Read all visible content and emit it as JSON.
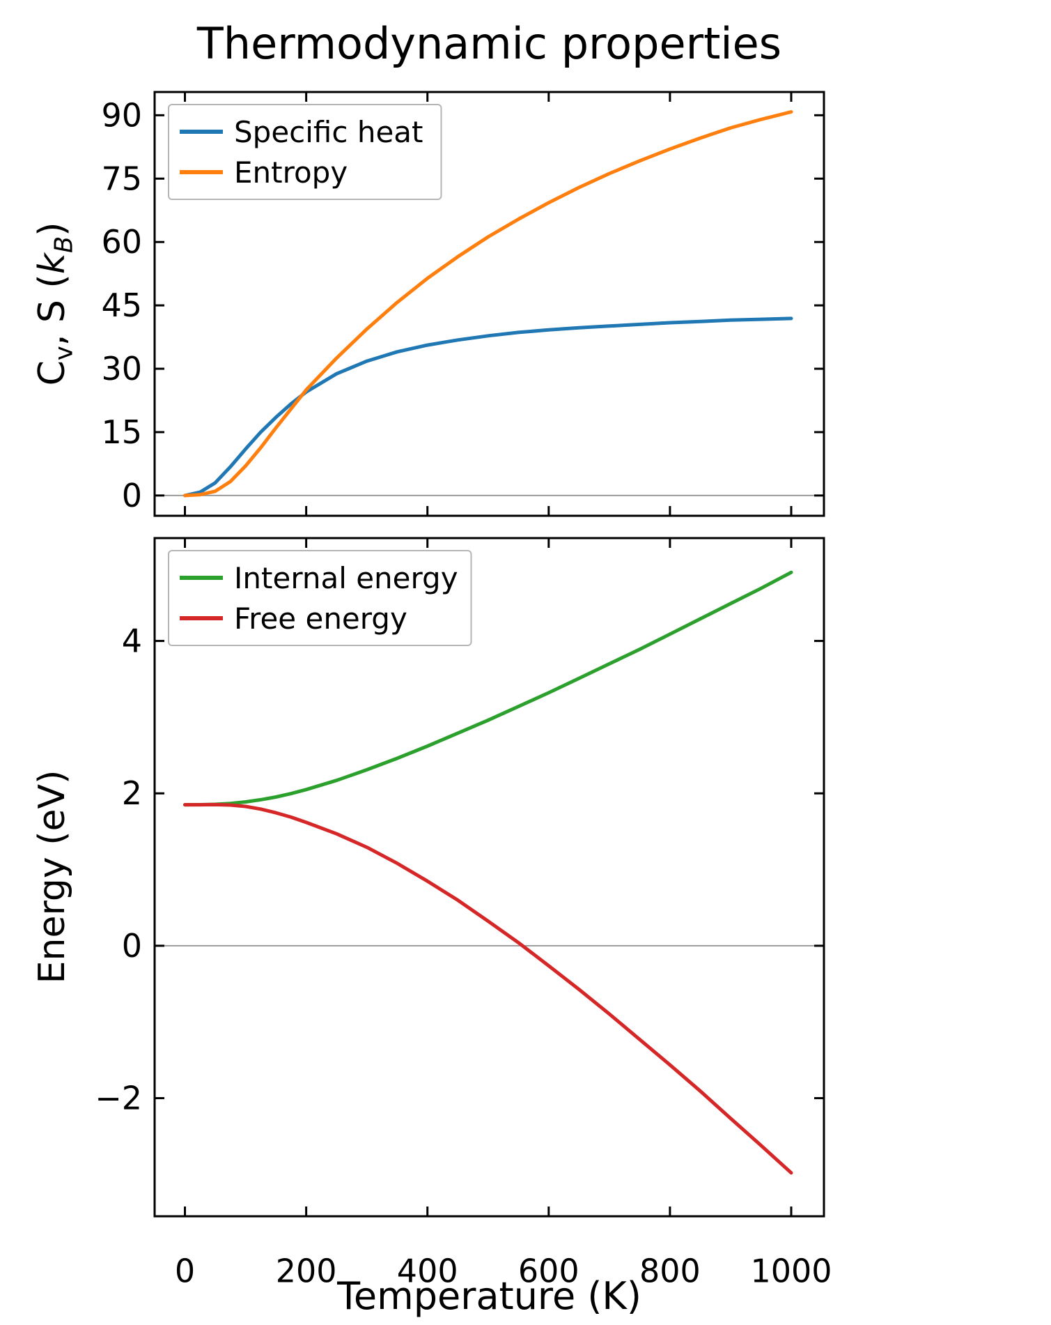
{
  "title": "Thermodynamic properties",
  "xlabel": "Temperature (K)",
  "colors": {
    "specific_heat": "#1f77b4",
    "entropy": "#ff7f0e",
    "internal_energy": "#2ca02c",
    "free_energy": "#d62728",
    "axes": "#000000",
    "zero_line": "#9a9a9a",
    "legend_border": "#b5b5b5",
    "background": "#ffffff"
  },
  "chart_data": [
    {
      "type": "line",
      "name": "top-chart",
      "ylabel": "Cv, S (kB)",
      "ylabel_parts": {
        "pre": "C",
        "sub_pre": "v",
        "mid": ", S (",
        "kvar": "k",
        "sub_k": "B",
        "post": ")"
      },
      "x": [
        0,
        25,
        50,
        75,
        100,
        125,
        150,
        175,
        200,
        250,
        300,
        350,
        400,
        450,
        500,
        550,
        600,
        650,
        700,
        750,
        800,
        850,
        900,
        950,
        1000
      ],
      "series": [
        {
          "name": "Specific heat",
          "color": "#1f77b4",
          "values": [
            0,
            0.8,
            3.0,
            6.8,
            11.0,
            15.0,
            18.5,
            21.7,
            24.5,
            28.8,
            31.8,
            34.0,
            35.6,
            36.8,
            37.8,
            38.6,
            39.2,
            39.7,
            40.1,
            40.5,
            40.9,
            41.2,
            41.5,
            41.7,
            41.9
          ]
        },
        {
          "name": "Entropy",
          "color": "#ff7f0e",
          "values": [
            0,
            0.2,
            1.0,
            3.3,
            7.0,
            11.3,
            16.0,
            20.5,
            25.0,
            32.5,
            39.4,
            45.7,
            51.4,
            56.5,
            61.2,
            65.4,
            69.3,
            72.9,
            76.2,
            79.2,
            82.0,
            84.6,
            87.0,
            89.0,
            90.8
          ]
        }
      ],
      "xlim": [
        -50,
        1054
      ],
      "ylim": [
        -4.8,
        95.5
      ],
      "xticks": [
        0,
        200,
        400,
        600,
        800,
        1000
      ],
      "yticks": [
        0,
        15,
        30,
        45,
        60,
        75,
        90
      ],
      "x_tick_labels_visible": false,
      "zero_line": true,
      "grid": false,
      "legend": {
        "position": "upper-left",
        "entries": [
          "Specific heat",
          "Entropy"
        ]
      }
    },
    {
      "type": "line",
      "name": "bottom-chart",
      "ylabel": "Energy (eV)",
      "xlabel": "Temperature (K)",
      "x": [
        0,
        25,
        50,
        75,
        100,
        125,
        150,
        175,
        200,
        250,
        300,
        350,
        400,
        450,
        500,
        550,
        600,
        650,
        700,
        750,
        800,
        850,
        900,
        950,
        1000
      ],
      "series": [
        {
          "name": "Internal energy",
          "color": "#2ca02c",
          "values": [
            1.85,
            1.851,
            1.856,
            1.868,
            1.888,
            1.916,
            1.952,
            1.997,
            2.05,
            2.17,
            2.31,
            2.46,
            2.62,
            2.79,
            2.96,
            3.14,
            3.32,
            3.51,
            3.7,
            3.89,
            4.09,
            4.29,
            4.49,
            4.69,
            4.9
          ]
        },
        {
          "name": "Free energy",
          "color": "#d62728",
          "values": [
            1.85,
            1.85,
            1.852,
            1.847,
            1.828,
            1.794,
            1.745,
            1.688,
            1.619,
            1.47,
            1.292,
            1.082,
            0.848,
            0.599,
            0.323,
            0.041,
            -0.263,
            -0.573,
            -0.896,
            -1.229,
            -1.563,
            -1.906,
            -2.265,
            -2.62,
            -2.98
          ]
        }
      ],
      "xlim": [
        -50,
        1054
      ],
      "ylim": [
        -3.55,
        5.35
      ],
      "xticks": [
        0,
        200,
        400,
        600,
        800,
        1000
      ],
      "yticks": [
        -2,
        0,
        2,
        4
      ],
      "x_tick_labels_visible": true,
      "zero_line": true,
      "grid": false,
      "legend": {
        "position": "upper-left",
        "entries": [
          "Internal energy",
          "Free energy"
        ]
      }
    }
  ]
}
